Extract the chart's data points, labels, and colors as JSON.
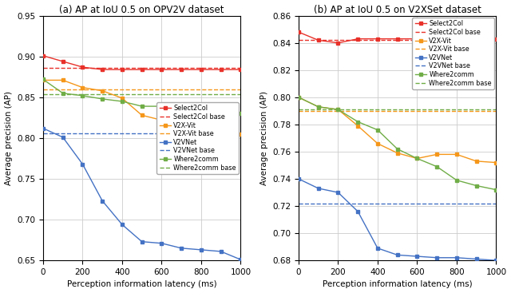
{
  "opv2v": {
    "title": "(a) AP at IoU 0.5 on OPV2V dataset",
    "xlabel": "Perception information latency (ms)",
    "ylabel": "Average precision (AP)",
    "xlim": [
      0,
      1000
    ],
    "ylim": [
      0.65,
      0.95
    ],
    "yticks": [
      0.65,
      0.7,
      0.75,
      0.8,
      0.85,
      0.9,
      0.95
    ],
    "xticks": [
      0,
      200,
      400,
      600,
      800,
      1000
    ],
    "legend_loc": "center right",
    "legend_bbox": null,
    "select2col": {
      "x": [
        0,
        100,
        200,
        300,
        400,
        500,
        600,
        700,
        800,
        900,
        1000
      ],
      "y": [
        0.901,
        0.894,
        0.887,
        0.884,
        0.884,
        0.884,
        0.884,
        0.884,
        0.884,
        0.884,
        0.884
      ],
      "base": 0.886,
      "color": "#e8312a"
    },
    "v2xvit": {
      "x": [
        0,
        100,
        200,
        300,
        400,
        500,
        600,
        700,
        800,
        900,
        1000
      ],
      "y": [
        0.871,
        0.871,
        0.862,
        0.858,
        0.849,
        0.828,
        0.822,
        0.822,
        0.811,
        0.811,
        0.805
      ],
      "base": 0.86,
      "color": "#f5971a"
    },
    "v2vnet": {
      "x": [
        0,
        100,
        200,
        300,
        400,
        500,
        600,
        700,
        800,
        900,
        1000
      ],
      "y": [
        0.812,
        0.801,
        0.768,
        0.723,
        0.694,
        0.673,
        0.671,
        0.665,
        0.663,
        0.661,
        0.651
      ],
      "base": 0.806,
      "color": "#4472c4"
    },
    "where2comm": {
      "x": [
        0,
        100,
        200,
        300,
        400,
        500,
        600,
        700,
        800,
        900,
        1000
      ],
      "y": [
        0.872,
        0.855,
        0.852,
        0.848,
        0.845,
        0.839,
        0.839,
        0.832,
        0.834,
        0.832,
        0.83
      ],
      "base": 0.854,
      "color": "#70ad47"
    }
  },
  "v2xset": {
    "title": "(b) AP at IoU 0.5 on V2XSet dataset",
    "xlabel": "Perception information latency (ms)",
    "ylabel": "Average precision (AP)",
    "xlim": [
      0,
      1000
    ],
    "ylim": [
      0.68,
      0.86
    ],
    "yticks": [
      0.68,
      0.7,
      0.72,
      0.74,
      0.76,
      0.78,
      0.8,
      0.82,
      0.84,
      0.86
    ],
    "xticks": [
      0,
      200,
      400,
      600,
      800,
      1000
    ],
    "legend_loc": "upper right",
    "legend_bbox": null,
    "select2col": {
      "x": [
        0,
        100,
        200,
        300,
        400,
        500,
        600,
        700,
        800,
        900,
        1000
      ],
      "y": [
        0.848,
        0.842,
        0.84,
        0.843,
        0.843,
        0.843,
        0.843,
        0.843,
        0.843,
        0.843,
        0.843
      ],
      "base": 0.842,
      "color": "#e8312a"
    },
    "v2xvit": {
      "x": [
        0,
        100,
        200,
        300,
        400,
        500,
        600,
        700,
        800,
        900,
        1000
      ],
      "y": [
        0.8,
        0.793,
        0.791,
        0.779,
        0.766,
        0.759,
        0.755,
        0.758,
        0.758,
        0.753,
        0.752
      ],
      "base": 0.79,
      "color": "#f5971a"
    },
    "v2vnet": {
      "x": [
        0,
        100,
        200,
        300,
        400,
        500,
        600,
        700,
        800,
        900,
        1000
      ],
      "y": [
        0.74,
        0.733,
        0.73,
        0.716,
        0.689,
        0.684,
        0.683,
        0.682,
        0.682,
        0.681,
        0.68
      ],
      "base": 0.722,
      "color": "#4472c4"
    },
    "where2comm": {
      "x": [
        0,
        100,
        200,
        300,
        400,
        500,
        600,
        700,
        800,
        900,
        1000
      ],
      "y": [
        0.8,
        0.793,
        0.791,
        0.782,
        0.776,
        0.762,
        0.755,
        0.749,
        0.739,
        0.735,
        0.732
      ],
      "base": 0.791,
      "color": "#70ad47"
    }
  },
  "fig_width": 6.4,
  "fig_height": 3.67,
  "dpi": 100
}
